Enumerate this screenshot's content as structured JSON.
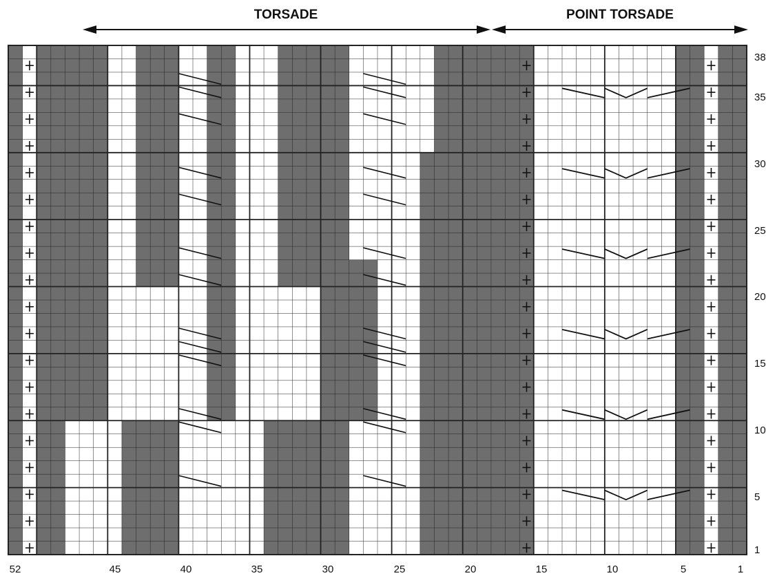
{
  "header": {
    "left_title": "TORSADE",
    "right_title": "POINT TORSADE"
  },
  "chart": {
    "stitches": 52,
    "rows": 38,
    "colors": {
      "purl": "#6e6e6e",
      "knit": "#ffffff",
      "grid": "#222222",
      "arrow": "#111111"
    },
    "purl_columns": [
      {
        "from": 1,
        "to": 2
      },
      {
        "from": 4,
        "to": 5
      },
      {
        "from": 16,
        "to": 17
      },
      {
        "from": 19,
        "to": 22
      },
      {
        "from": 29,
        "to": 30
      },
      {
        "from": 49,
        "to": 50
      },
      {
        "from": 52,
        "to": 52
      }
    ],
    "cross_columns": [
      3,
      16,
      51
    ],
    "cable_crossing_rows": [
      6,
      10,
      11,
      15,
      16,
      17,
      21,
      23,
      27,
      29,
      33,
      35,
      36
    ],
    "point_crossing_rows": [
      5,
      11,
      17,
      23,
      29,
      35
    ]
  },
  "x_axis": {
    "labels": [
      "52",
      "45",
      "40",
      "35",
      "30",
      "25",
      "20",
      "15",
      "10",
      "5",
      "1"
    ],
    "stitch_numbers": [
      52,
      45,
      40,
      35,
      30,
      25,
      20,
      15,
      10,
      5,
      1
    ]
  },
  "y_axis": {
    "labels": [
      "1",
      "5",
      "10",
      "15",
      "20",
      "25",
      "30",
      "35",
      "38"
    ],
    "row_numbers": [
      1,
      5,
      10,
      15,
      20,
      25,
      30,
      35,
      38
    ]
  }
}
